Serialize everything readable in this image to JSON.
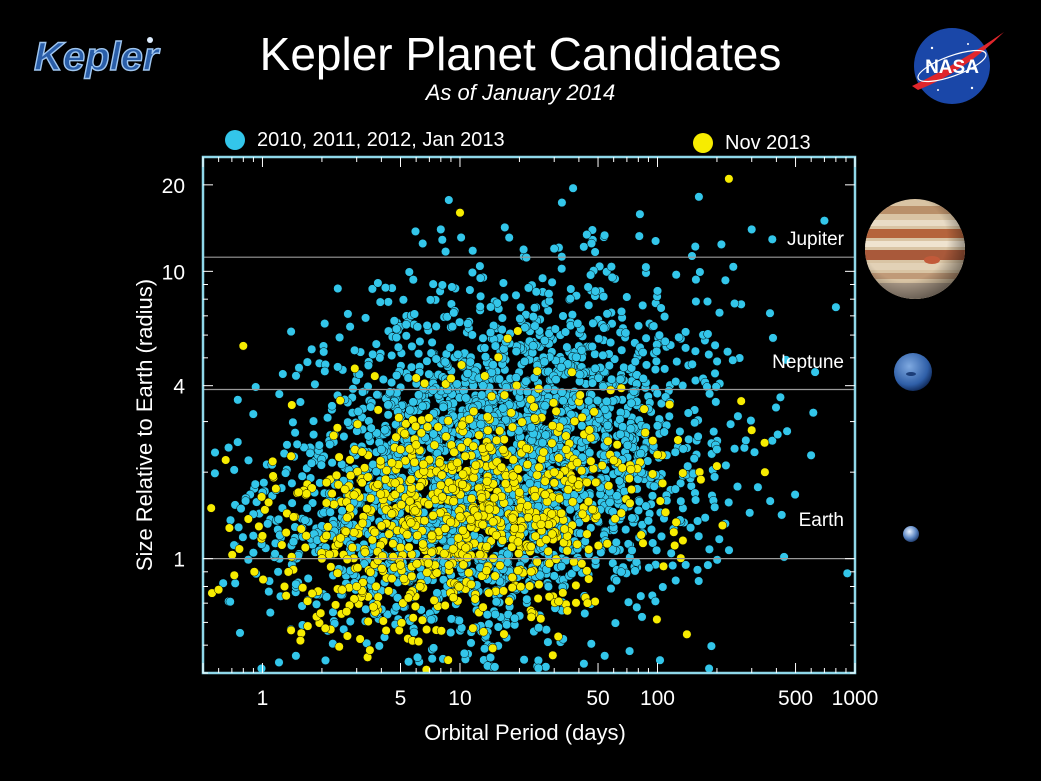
{
  "header": {
    "title": "Kepler Planet Candidates",
    "subtitle": "As of January 2014",
    "kepler_logo_text": "Kepler",
    "nasa_logo_text": "NASA"
  },
  "legend": [
    {
      "label": "2010, 2011, 2012, Jan 2013",
      "color": "#33c6ea"
    },
    {
      "label": "Nov 2013",
      "color": "#f7ec00"
    }
  ],
  "planets": [
    {
      "name": "Jupiter",
      "radius": 11.2,
      "icon": "jupiter-icon"
    },
    {
      "name": "Neptune",
      "radius": 3.88,
      "icon": "neptune-icon"
    },
    {
      "name": "Earth",
      "radius": 1,
      "icon": "earth-icon"
    }
  ],
  "chart_data": {
    "type": "scatter",
    "title": "Kepler Planet Candidates",
    "subtitle": "As of January 2014",
    "xlabel": "Orbital Period (days)",
    "ylabel": "Size Relative to Earth (radius)",
    "xscale": "log",
    "yscale": "log",
    "xlim": [
      0.5,
      1000
    ],
    "ylim": [
      0.4,
      25
    ],
    "xticks": [
      1,
      5,
      10,
      50,
      100,
      500,
      1000
    ],
    "xtick_labels": [
      "1",
      "5",
      "10",
      "50",
      "100",
      "500",
      "1000"
    ],
    "yticks": [
      1,
      4,
      10,
      20
    ],
    "ytick_labels": [
      "1",
      "4",
      "10",
      "20"
    ],
    "grid": false,
    "legend_position": "top",
    "reference_lines": [
      {
        "label": "Jupiter",
        "y": 11.2
      },
      {
        "label": "Neptune",
        "y": 3.88
      },
      {
        "label": "Earth",
        "y": 1
      }
    ],
    "series": [
      {
        "name": "2010, 2011, 2012, Jan 2013",
        "color": "#33c6ea",
        "count": 2700,
        "distribution": {
          "logP_mean": 1.2,
          "logP_sd": 0.55,
          "logR_mean": 0.33,
          "logR_sd": 0.3
        },
        "sample_points": [
          [
            0.85,
            2.2
          ],
          [
            1.0,
            1.7
          ],
          [
            1.5,
            2.5
          ],
          [
            2.0,
            1.3
          ],
          [
            3.0,
            2.0
          ],
          [
            4.0,
            2.4
          ],
          [
            5.0,
            2.8
          ],
          [
            7.0,
            2.1
          ],
          [
            10.0,
            2.5
          ],
          [
            15.0,
            3.0
          ],
          [
            20.0,
            2.3
          ],
          [
            30.0,
            2.6
          ],
          [
            50.0,
            3.2
          ],
          [
            100.0,
            2.9
          ],
          [
            200.0,
            2.4
          ],
          [
            1.2,
            0.9
          ],
          [
            2.5,
            0.75
          ],
          [
            8.0,
            14.0
          ],
          [
            30.0,
            12.0
          ],
          [
            300.0,
            14.0
          ],
          [
            700.0,
            15.0
          ],
          [
            800.0,
            7.5
          ],
          [
            15.0,
            0.42
          ],
          [
            180.0,
            0.95
          ]
        ]
      },
      {
        "name": "Nov 2013",
        "color": "#f7ec00",
        "count": 830,
        "distribution": {
          "logP_mean": 1.0,
          "logP_sd": 0.5,
          "logR_mean": 0.15,
          "logR_sd": 0.2
        },
        "sample_points": [
          [
            0.55,
            1.5
          ],
          [
            0.6,
            0.78
          ],
          [
            0.8,
            5.5
          ],
          [
            1.0,
            1.2
          ],
          [
            2.0,
            1.0
          ],
          [
            3.0,
            0.8
          ],
          [
            4.0,
            1.3
          ],
          [
            5.0,
            0.95
          ],
          [
            8.0,
            1.8
          ],
          [
            10.0,
            1.4
          ],
          [
            20.0,
            1.7
          ],
          [
            30.0,
            2.0
          ],
          [
            60.0,
            2.2
          ],
          [
            100.0,
            2.3
          ],
          [
            200.0,
            2.1
          ],
          [
            300.0,
            2.8
          ],
          [
            350.0,
            2.0
          ],
          [
            90.0,
            25.0
          ],
          [
            230.0,
            21.0
          ],
          [
            3.5,
            0.48
          ],
          [
            10.0,
            16.0
          ]
        ]
      }
    ]
  }
}
